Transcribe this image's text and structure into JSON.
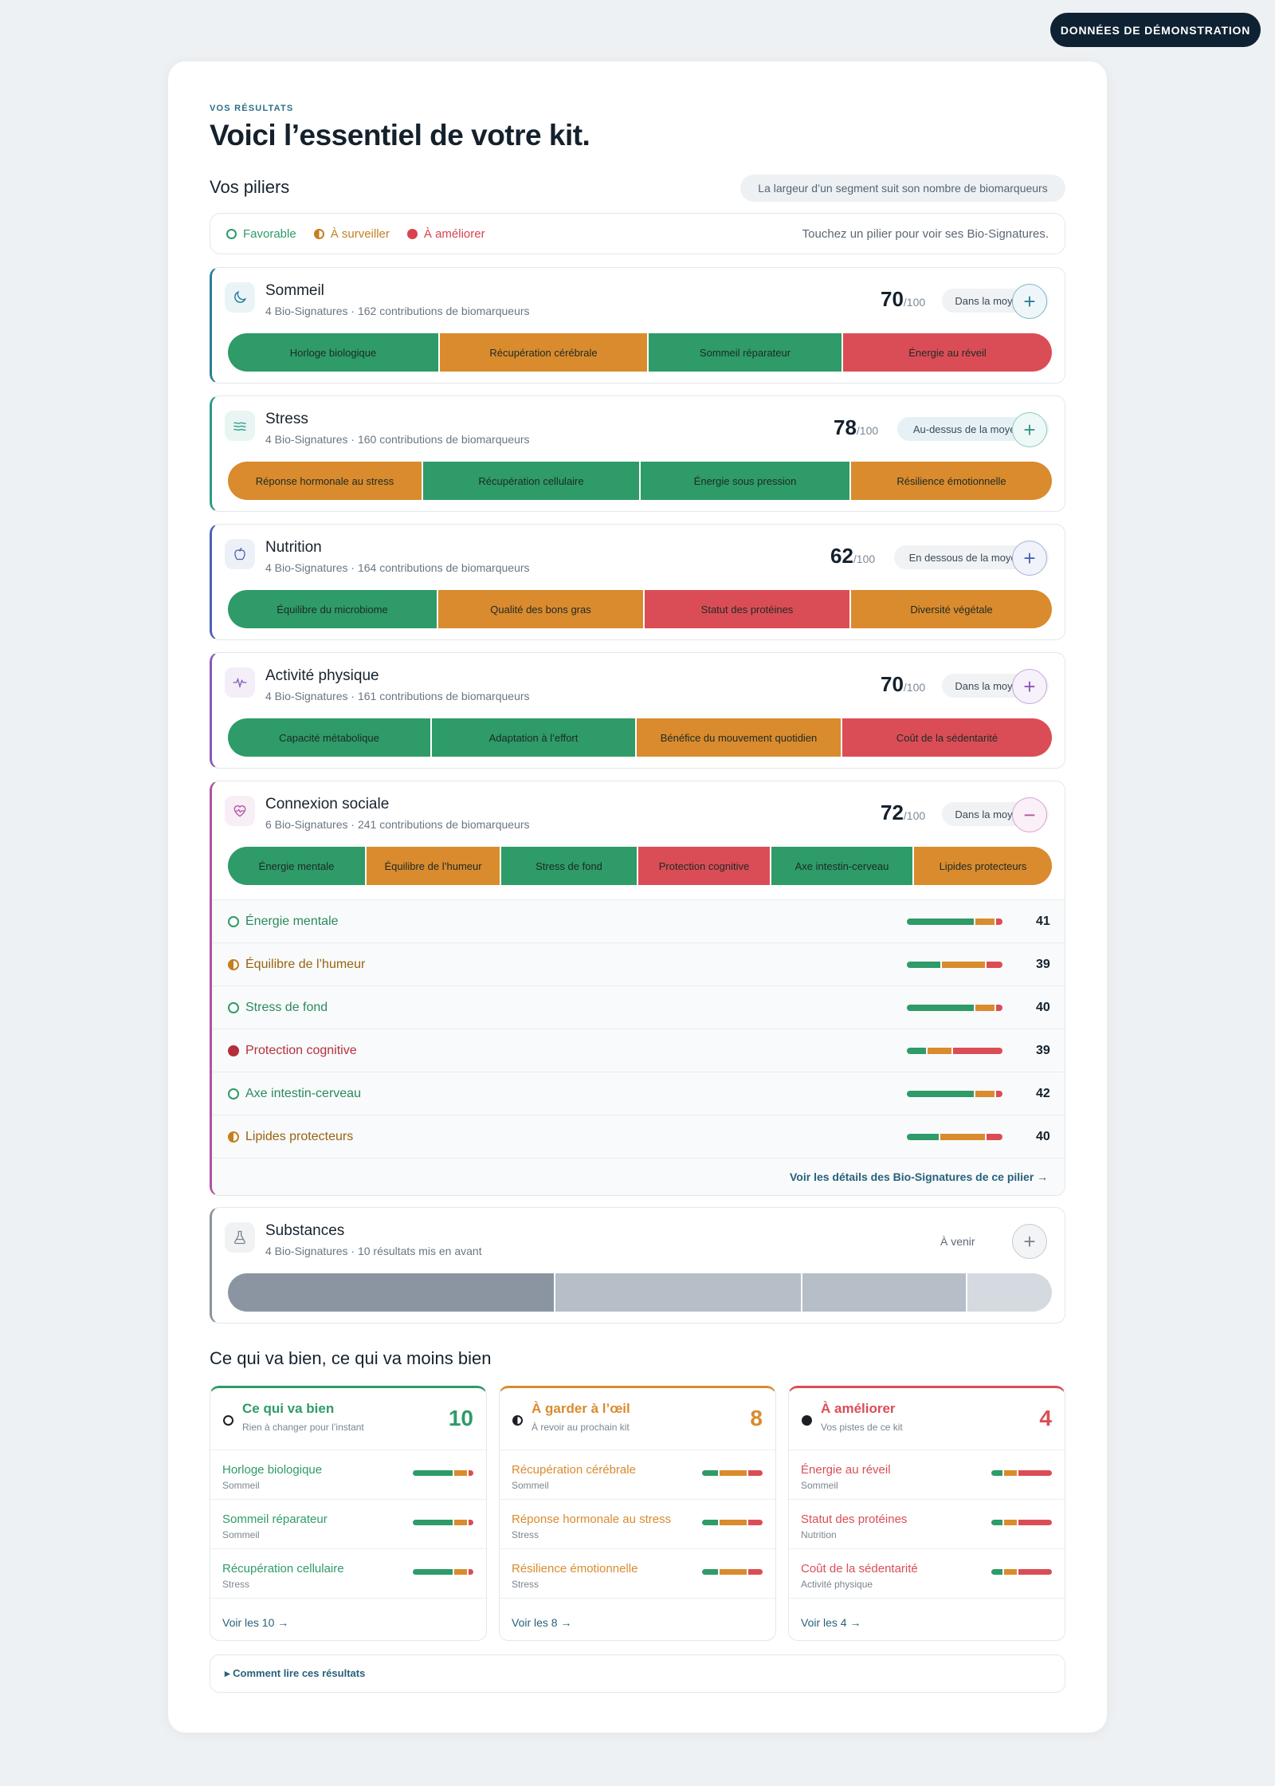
{
  "demo_badge": "DONNÉES DE DÉMONSTRATION",
  "header": {
    "eyebrow": "VOS RÉSULTATS",
    "title": "Voici l’essentiel de votre kit."
  },
  "pillars_section": {
    "title": "Vos piliers",
    "note": "La largeur d’un segment suit son nombre de biomarqueurs"
  },
  "legend": {
    "favorable": "Favorable",
    "watch": "À surveiller",
    "improve": "À améliorer",
    "hint": "Touchez un pilier pour voir ses Bio-Signatures."
  },
  "colors": {
    "favorable": "#2e9b68",
    "watch": "#d98b2e",
    "improve": "#db4d56",
    "navy": "#0f2233"
  },
  "pillars": [
    {
      "name": "Sommeil",
      "sub": "4 Bio-Signatures · 162 contributions de biomarqueurs",
      "score": "70",
      "score_max": "/100",
      "status": "Dans la moyenne",
      "icon": "moon-icon",
      "toggle": "+",
      "segments": [
        {
          "label": "Horloge biologique",
          "level": "favorable"
        },
        {
          "label": "Récupération cérébrale",
          "level": "watch"
        },
        {
          "label": "Sommeil réparateur",
          "level": "favorable"
        },
        {
          "label": "Énergie au réveil",
          "level": "improve"
        }
      ]
    },
    {
      "name": "Stress",
      "sub": "4 Bio-Signatures · 160 contributions de biomarqueurs",
      "score": "78",
      "score_max": "/100",
      "status": "Au-dessus de la moyenne",
      "icon": "waves-icon",
      "toggle": "+",
      "segments": [
        {
          "label": "Réponse hormonale au stress",
          "level": "watch"
        },
        {
          "label": "Récupération cellulaire",
          "level": "favorable"
        },
        {
          "label": "Énergie sous pression",
          "level": "favorable"
        },
        {
          "label": "Résilience émotionnelle",
          "level": "watch"
        }
      ]
    },
    {
      "name": "Nutrition",
      "sub": "4 Bio-Signatures · 164 contributions de biomarqueurs",
      "score": "62",
      "score_max": "/100",
      "status": "En dessous de la moyenne",
      "icon": "apple-icon",
      "toggle": "+",
      "segments": [
        {
          "label": "Équilibre du microbiome",
          "level": "favorable"
        },
        {
          "label": "Qualité des bons gras",
          "level": "watch"
        },
        {
          "label": "Statut des protéines",
          "level": "improve"
        },
        {
          "label": "Diversité végétale",
          "level": "watch"
        }
      ]
    },
    {
      "name": "Activité physique",
      "sub": "4 Bio-Signatures · 161 contributions de biomarqueurs",
      "score": "70",
      "score_max": "/100",
      "status": "Dans la moyenne",
      "icon": "pulse-icon",
      "toggle": "+",
      "segments": [
        {
          "label": "Capacité métabolique",
          "level": "favorable"
        },
        {
          "label": "Adaptation à l’effort",
          "level": "favorable"
        },
        {
          "label": "Bénéfice du mouvement quotidien",
          "level": "watch"
        },
        {
          "label": "Coût de la sédentarité",
          "level": "improve"
        }
      ]
    },
    {
      "name": "Connexion sociale",
      "sub": "6 Bio-Signatures · 241 contributions de biomarqueurs",
      "score": "72",
      "score_max": "/100",
      "status": "Dans la moyenne",
      "icon": "heart-pulse-icon",
      "toggle": "−",
      "segments": [
        {
          "label": "Énergie mentale",
          "level": "favorable"
        },
        {
          "label": "Équilibre de l’humeur",
          "level": "watch"
        },
        {
          "label": "Stress de fond",
          "level": "favorable"
        },
        {
          "label": "Protection cognitive",
          "level": "improve"
        },
        {
          "label": "Axe intestin-cerveau",
          "level": "favorable"
        },
        {
          "label": "Lipides protecteurs",
          "level": "watch"
        }
      ],
      "signatures": [
        {
          "label": "Énergie mentale",
          "level": "favorable",
          "value": "41"
        },
        {
          "label": "Équilibre de l’humeur",
          "level": "watch",
          "value": "39"
        },
        {
          "label": "Stress de fond",
          "level": "favorable",
          "value": "40"
        },
        {
          "label": "Protection cognitive",
          "level": "improve",
          "value": "39"
        },
        {
          "label": "Axe intestin-cerveau",
          "level": "favorable",
          "value": "42"
        },
        {
          "label": "Lipides protecteurs",
          "level": "watch",
          "value": "40"
        }
      ],
      "details_link": "Voir les détails des Bio-Signatures de ce pilier →"
    },
    {
      "name": "Substances",
      "sub": "4 Bio-Signatures · 10 résultats mis en avant",
      "status": "À venir",
      "icon": "flask-icon",
      "toggle": "+"
    }
  ],
  "summary": {
    "title": "Ce qui va bien, ce qui va moins bien",
    "columns": [
      {
        "title": "Ce qui va bien",
        "sub": "Rien à changer pour l’instant",
        "count": "10",
        "more": "Voir les 10 →",
        "items": [
          {
            "name": "Horloge biologique",
            "pillar": "Sommeil"
          },
          {
            "name": "Sommeil réparateur",
            "pillar": "Sommeil"
          },
          {
            "name": "Récupération cellulaire",
            "pillar": "Stress"
          }
        ]
      },
      {
        "title": "À garder à l’œil",
        "sub": "À revoir au prochain kit",
        "count": "8",
        "more": "Voir les 8 →",
        "items": [
          {
            "name": "Récupération cérébrale",
            "pillar": "Sommeil"
          },
          {
            "name": "Réponse hormonale au stress",
            "pillar": "Stress"
          },
          {
            "name": "Résilience émotionnelle",
            "pillar": "Stress"
          }
        ]
      },
      {
        "title": "À améliorer",
        "sub": "Vos pistes de ce kit",
        "count": "4",
        "more": "Voir les 4 →",
        "items": [
          {
            "name": "Énergie au réveil",
            "pillar": "Sommeil"
          },
          {
            "name": "Statut des protéines",
            "pillar": "Nutrition"
          },
          {
            "name": "Coût de la sédentarité",
            "pillar": "Activité physique"
          }
        ]
      }
    ]
  },
  "howto": "▸ Comment lire ces résultats"
}
